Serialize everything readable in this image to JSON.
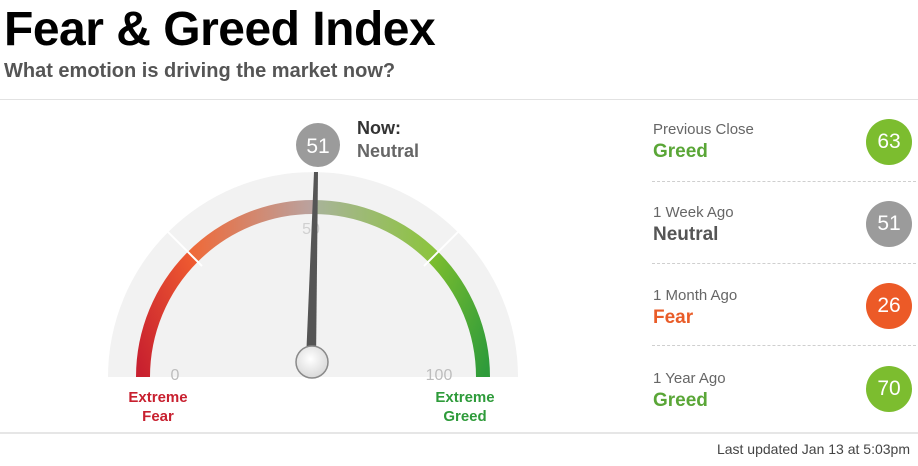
{
  "header": {
    "title": "Fear & Greed Index",
    "subtitle": "What emotion is driving the market now?"
  },
  "gauge": {
    "value": "51",
    "now_label": "Now:",
    "now_rating": "Neutral",
    "mid_tick": "50",
    "min_tick": "0",
    "max_tick": "100",
    "left_label_line1": "Extreme",
    "left_label_line2": "Fear",
    "right_label_line1": "Extreme",
    "right_label_line2": "Greed"
  },
  "history": [
    {
      "label": "Previous Close",
      "rating": "Greed",
      "value": "63",
      "rating_color": "#5aa637",
      "circle_color": "#7cbd2f"
    },
    {
      "label": "1 Week Ago",
      "rating": "Neutral",
      "value": "51",
      "rating_color": "#555555",
      "circle_color": "#9b9b9b"
    },
    {
      "label": "1 Month Ago",
      "rating": "Fear",
      "value": "26",
      "rating_color": "#e95c28",
      "circle_color": "#ec5a27"
    },
    {
      "label": "1 Year Ago",
      "rating": "Greed",
      "value": "70",
      "rating_color": "#5aa637",
      "circle_color": "#7cbd2f"
    }
  ],
  "footer": {
    "last_updated": "Last updated Jan 13 at 5:03pm"
  },
  "colors": {
    "extreme_fear": "#c8202f",
    "fear": "#ec5a27",
    "neutral": "#9b9b9b",
    "greed": "#7cbd2f",
    "extreme_greed": "#2e9b3a"
  }
}
